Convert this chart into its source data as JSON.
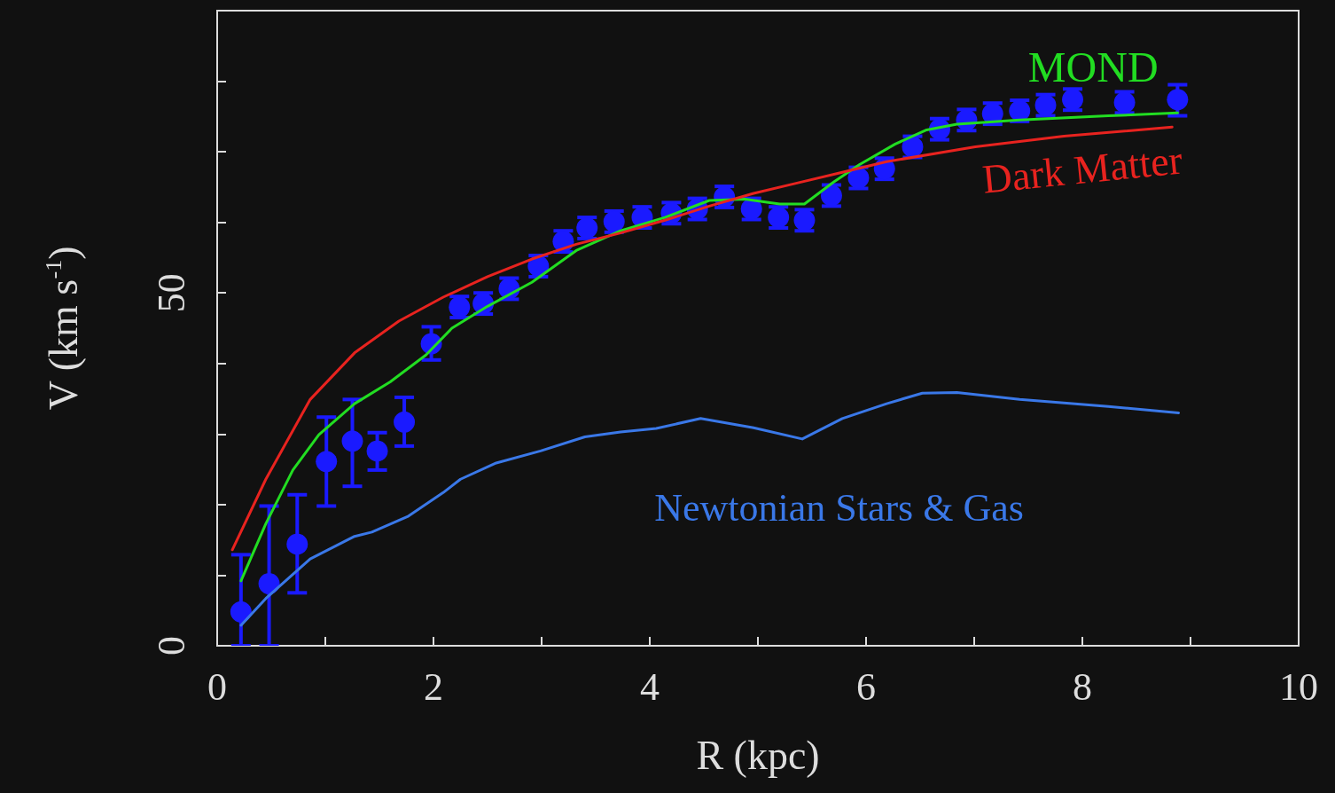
{
  "chart_data": {
    "type": "line",
    "xlabel": "R (kpc)",
    "ylabel": "V (km s$^{-1}$)",
    "xlim": [
      0,
      10
    ],
    "xticks": [
      0,
      {
        "value": 1,
        "label": null
      },
      2,
      {
        "value": 3,
        "label": null
      },
      4,
      {
        "value": 5,
        "label": null
      },
      6,
      {
        "value": 7,
        "label": null
      },
      8,
      {
        "value": 9,
        "label": null
      },
      10
    ],
    "ylim": [
      0,
      90
    ],
    "yticks": [
      0,
      {
        "value": 10,
        "label": null
      },
      {
        "value": 20,
        "label": null
      },
      {
        "value": 30,
        "label": null
      },
      {
        "value": 40,
        "label": null
      },
      50,
      {
        "value": 60,
        "label": null
      },
      {
        "value": 70,
        "label": null
      },
      {
        "value": 80,
        "label": null
      }
    ],
    "grid": false,
    "legend": false,
    "series": [
      {
        "type": "scatter",
        "marker": "circle",
        "color": "#1a1aff",
        "x": [
          0.22,
          0.48,
          0.74,
          1.01,
          1.25,
          1.48,
          1.73,
          1.98,
          2.24,
          2.46,
          2.7,
          2.97,
          3.2,
          3.42,
          3.67,
          3.93,
          4.2,
          4.44,
          4.69,
          4.94,
          5.19,
          5.43,
          5.68,
          5.93,
          6.17,
          6.43,
          6.68,
          6.93,
          7.17,
          7.42,
          7.66,
          7.91,
          8.39,
          8.88
        ],
        "values": [
          4.8,
          8.8,
          14.4,
          26.1,
          29.0,
          27.6,
          31.7,
          42.8,
          48.0,
          48.5,
          50.6,
          53.8,
          57.3,
          59.2,
          60.1,
          60.7,
          61.3,
          61.9,
          63.6,
          61.9,
          60.7,
          60.3,
          63.8,
          66.3,
          67.6,
          70.7,
          73.2,
          74.5,
          75.4,
          75.8,
          76.6,
          77.4,
          77.0,
          77.4
        ],
        "errors": [
          [
            0,
            12.9
          ],
          [
            0,
            19.8
          ],
          [
            7.5,
            21.4
          ],
          [
            19.8,
            32.4
          ],
          [
            22.6,
            34.9
          ],
          [
            24.9,
            30.2
          ],
          [
            28.3,
            35.2
          ],
          [
            40.5,
            45.2
          ],
          1.5,
          1.5,
          1.5,
          1.5,
          1.5,
          1.5,
          1.5,
          1.5,
          1.5,
          1.5,
          1.5,
          1.5,
          1.5,
          1.5,
          1.5,
          1.5,
          1.5,
          1.5,
          1.5,
          1.5,
          1.5,
          1.5,
          1.5,
          1.5,
          1.5,
          [
            75.1,
            79.5
          ]
        ]
      },
      {
        "type": "line",
        "marker": "none",
        "name": "MOND",
        "color": "#22dd22",
        "x": [
          0.22,
          0.45,
          0.7,
          0.94,
          1.27,
          1.6,
          1.93,
          2.17,
          2.5,
          2.91,
          3.32,
          3.73,
          4.14,
          4.55,
          4.88,
          5.2,
          5.43,
          5.7,
          5.94,
          6.27,
          6.56,
          6.84,
          7.42,
          8.24,
          8.88
        ],
        "values": [
          9.2,
          17.3,
          24.9,
          29.9,
          34.3,
          37.4,
          41.2,
          45.0,
          48.1,
          51.5,
          56.0,
          58.8,
          60.7,
          63.1,
          63.3,
          62.6,
          62.6,
          65.7,
          68.2,
          71.1,
          73.1,
          73.9,
          74.5,
          75.1,
          75.5
        ]
      },
      {
        "type": "line",
        "marker": "none",
        "name": "Dark Matter",
        "color": "#e8231f",
        "x": [
          0.14,
          0.45,
          0.86,
          1.27,
          1.68,
          2.09,
          2.5,
          2.91,
          3.32,
          3.73,
          4.14,
          4.55,
          4.96,
          5.37,
          5.78,
          6.19,
          7.01,
          7.83,
          8.83
        ],
        "values": [
          13.6,
          23.6,
          34.9,
          41.5,
          46.0,
          49.4,
          52.3,
          54.8,
          56.9,
          58.5,
          60.3,
          62.3,
          64.1,
          65.6,
          67.1,
          68.6,
          70.7,
          72.2,
          73.5
        ]
      },
      {
        "type": "line",
        "marker": "none",
        "name": "Newtonian Stars & Gas",
        "color": "#3a78e8",
        "x": [
          0.22,
          0.45,
          0.86,
          1.27,
          1.43,
          1.76,
          2.09,
          2.25,
          2.58,
          2.99,
          3.4,
          3.73,
          4.06,
          4.47,
          4.96,
          5.41,
          5.78,
          6.19,
          6.52,
          6.84,
          7.42,
          8.24,
          8.89
        ],
        "values": [
          2.9,
          6.7,
          12.3,
          15.5,
          16.1,
          18.3,
          21.7,
          23.6,
          25.9,
          27.6,
          29.6,
          30.3,
          30.8,
          32.2,
          30.9,
          29.3,
          32.2,
          34.3,
          35.8,
          35.9,
          34.9,
          33.9,
          33.0
        ]
      }
    ]
  }
}
